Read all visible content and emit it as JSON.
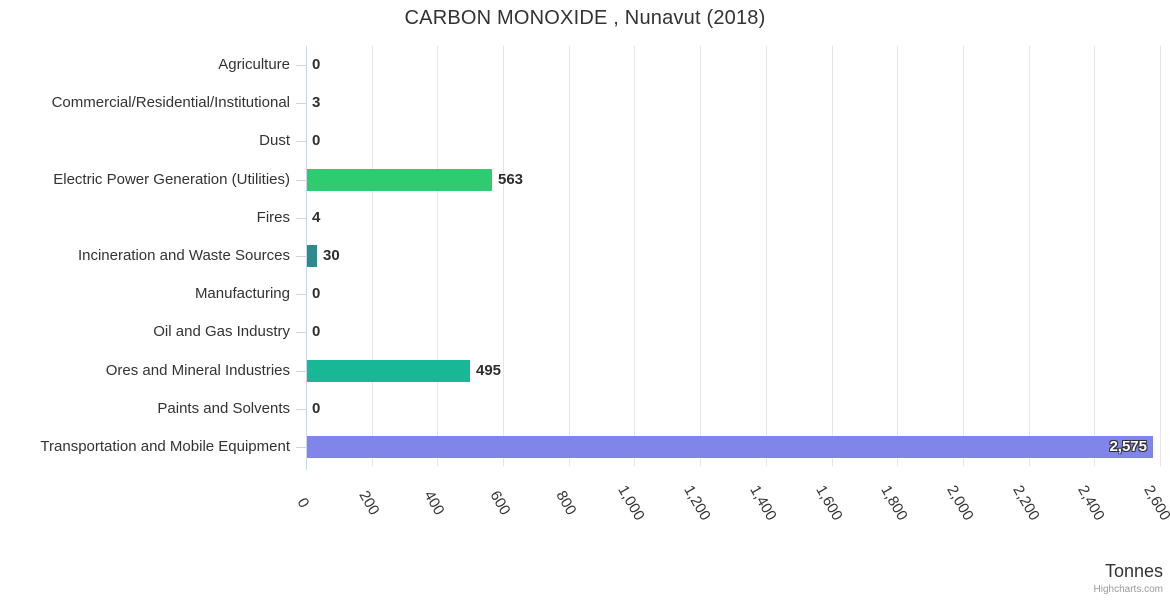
{
  "chart": {
    "title": "CARBON MONOXIDE , Nunavut (2018)",
    "axis_title": "Tonnes",
    "credits": "Highcharts.com"
  },
  "chart_data": {
    "type": "bar",
    "orientation": "horizontal",
    "title": "CARBON MONOXIDE , Nunavut (2018)",
    "categories": [
      "Agriculture",
      "Commercial/Residential/Institutional",
      "Dust",
      "Electric Power Generation (Utilities)",
      "Fires",
      "Incineration and Waste Sources",
      "Manufacturing",
      "Oil and Gas Industry",
      "Ores and Mineral Industries",
      "Paints and Solvents",
      "Transportation and Mobile Equipment"
    ],
    "values": [
      0,
      3,
      0,
      563,
      4,
      30,
      0,
      0,
      495,
      0,
      2575
    ],
    "value_labels": [
      "0",
      "3",
      "0",
      "563",
      "4",
      "30",
      "0",
      "0",
      "495",
      "0",
      "2,575"
    ],
    "bar_colors": [
      null,
      null,
      null,
      "#2ecb71",
      null,
      "#2e8b8d",
      null,
      null,
      "#18b795",
      null,
      "#8085e9"
    ],
    "label_inside": [
      false,
      false,
      false,
      false,
      false,
      false,
      false,
      false,
      false,
      false,
      true
    ],
    "xlabel": "Tonnes",
    "xlim": [
      0,
      2600
    ],
    "tick_interval": 200,
    "tick_labels": [
      "0",
      "200",
      "400",
      "600",
      "800",
      "1,000",
      "1,200",
      "1,400",
      "1,600",
      "1,800",
      "2,000",
      "2,200",
      "2,400",
      "2,600"
    ],
    "grid": true,
    "legend": false
  },
  "colors": {
    "grid": "#e6e6e6",
    "axis": "#ccd6eb",
    "text": "#333333",
    "data_label": "#2e2e2e",
    "inside_label": "#ffffff",
    "credits": "#999999"
  }
}
